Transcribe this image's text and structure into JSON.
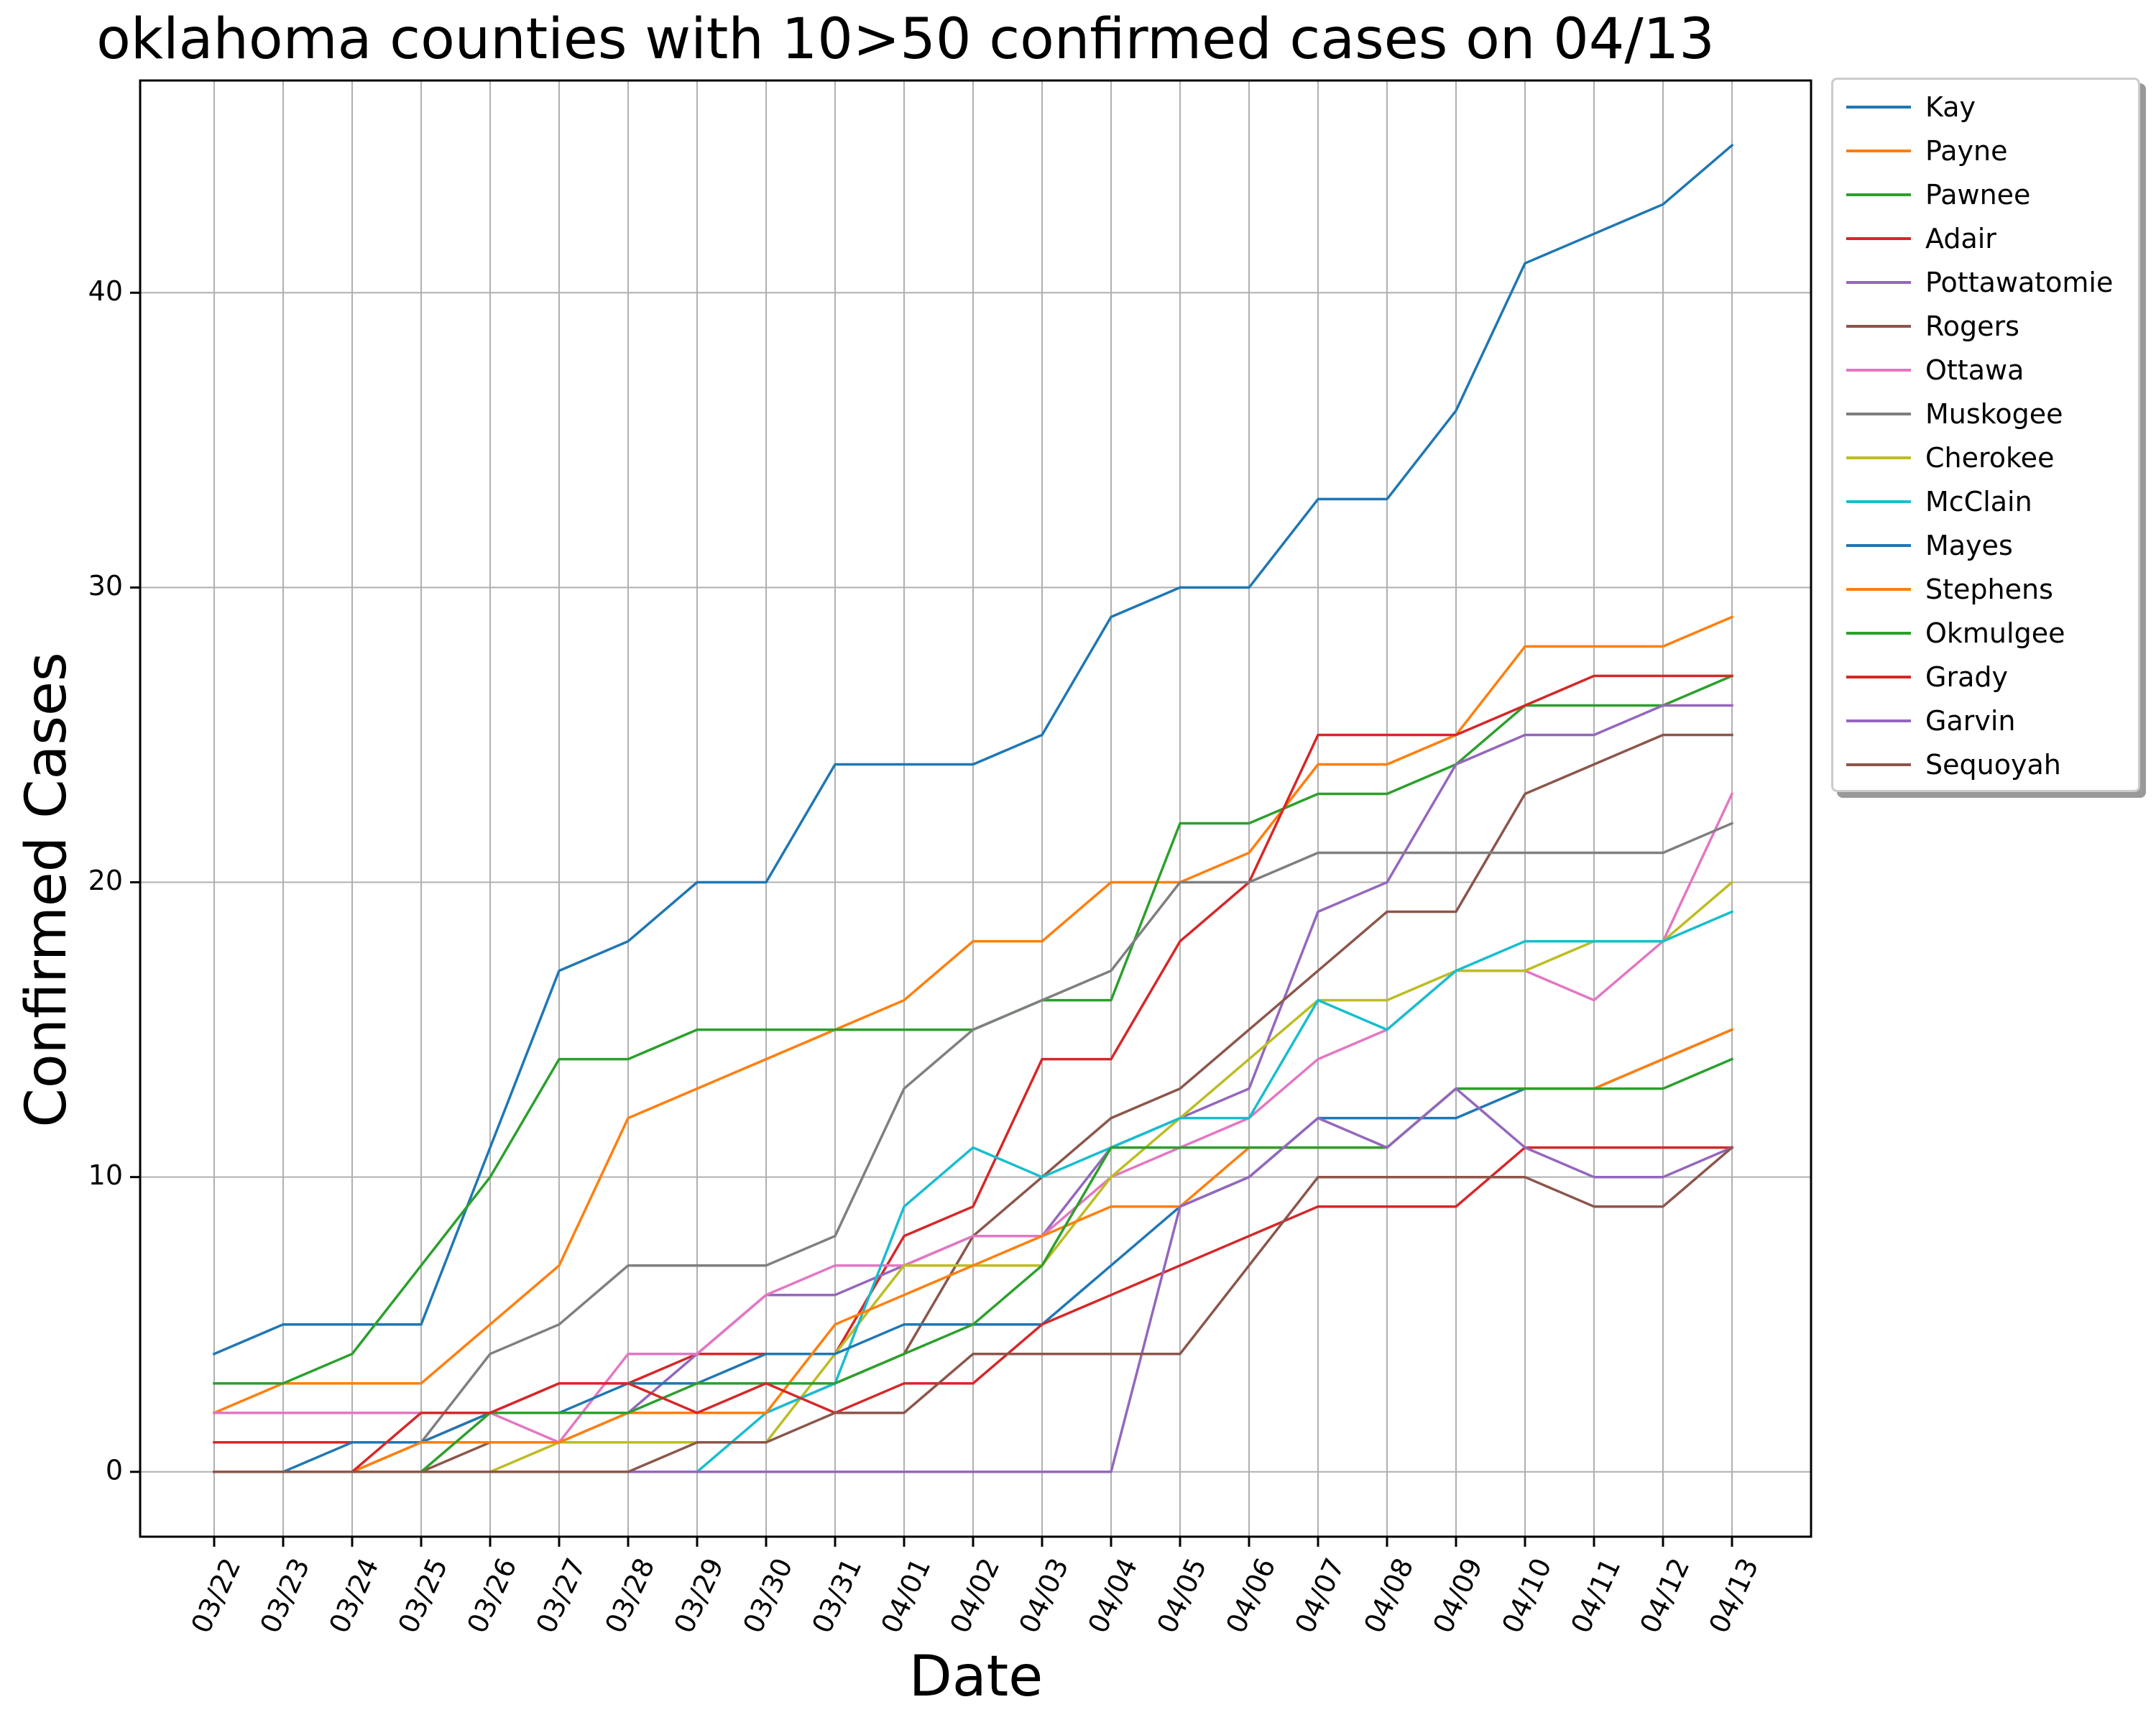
{
  "chart_data": {
    "type": "line",
    "title": "oklahoma counties with 10>50 confirmed cases on 04/13",
    "xlabel": "Date",
    "ylabel": "Confirmed Cases",
    "categories": [
      "03/22",
      "03/23",
      "03/24",
      "03/25",
      "03/26",
      "03/27",
      "03/28",
      "03/29",
      "03/30",
      "03/31",
      "04/01",
      "04/02",
      "04/03",
      "04/04",
      "04/05",
      "04/06",
      "04/07",
      "04/08",
      "04/09",
      "04/10",
      "04/11",
      "04/12",
      "04/13"
    ],
    "ylim": [
      -2.2,
      47.2
    ],
    "yticks": [
      0,
      10,
      20,
      30,
      40
    ],
    "grid": true,
    "legend_position": "outside top-right",
    "series": [
      {
        "name": "Kay",
        "color": "#1f77b4",
        "values": [
          4,
          5,
          5,
          5,
          11,
          17,
          18,
          20,
          20,
          24,
          24,
          24,
          25,
          29,
          30,
          30,
          33,
          33,
          36,
          41,
          42,
          43,
          45
        ]
      },
      {
        "name": "Payne",
        "color": "#ff7f0e",
        "values": [
          2,
          3,
          3,
          3,
          5,
          7,
          12,
          13,
          14,
          15,
          16,
          18,
          18,
          20,
          20,
          21,
          24,
          24,
          25,
          28,
          28,
          28,
          29
        ]
      },
      {
        "name": "Pawnee",
        "color": "#2ca02c",
        "values": [
          3,
          3,
          4,
          7,
          10,
          14,
          14,
          15,
          15,
          15,
          15,
          15,
          16,
          16,
          22,
          22,
          23,
          23,
          24,
          26,
          26,
          26,
          27
        ]
      },
      {
        "name": "Adair",
        "color": "#d62728",
        "values": [
          1,
          1,
          1,
          1,
          2,
          3,
          3,
          4,
          4,
          4,
          8,
          9,
          14,
          14,
          18,
          20,
          25,
          25,
          25,
          26,
          27,
          27,
          27
        ]
      },
      {
        "name": "Pottawatomie",
        "color": "#9467bd",
        "values": [
          2,
          2,
          2,
          2,
          2,
          2,
          2,
          4,
          6,
          6,
          7,
          8,
          8,
          11,
          12,
          13,
          19,
          20,
          24,
          25,
          25,
          26,
          26
        ]
      },
      {
        "name": "Rogers",
        "color": "#8c564b",
        "values": [
          0,
          0,
          0,
          0,
          1,
          1,
          2,
          2,
          2,
          3,
          4,
          8,
          10,
          12,
          13,
          15,
          17,
          19,
          19,
          23,
          24,
          25,
          25
        ]
      },
      {
        "name": "Ottawa",
        "color": "#e377c2",
        "values": [
          2,
          2,
          2,
          2,
          2,
          1,
          4,
          4,
          6,
          7,
          7,
          8,
          8,
          10,
          11,
          12,
          14,
          15,
          17,
          17,
          16,
          18,
          23
        ]
      },
      {
        "name": "Muskogee",
        "color": "#7f7f7f",
        "values": [
          0,
          0,
          0,
          1,
          4,
          5,
          7,
          7,
          7,
          8,
          13,
          15,
          16,
          17,
          20,
          20,
          21,
          21,
          21,
          21,
          21,
          21,
          22
        ]
      },
      {
        "name": "Cherokee",
        "color": "#bcbd22",
        "values": [
          0,
          0,
          0,
          0,
          0,
          1,
          1,
          1,
          1,
          4,
          7,
          7,
          7,
          10,
          12,
          14,
          16,
          16,
          17,
          17,
          18,
          18,
          20
        ]
      },
      {
        "name": "McClain",
        "color": "#17becf",
        "values": [
          0,
          0,
          0,
          0,
          0,
          0,
          0,
          0,
          2,
          3,
          9,
          11,
          10,
          11,
          12,
          12,
          16,
          15,
          17,
          18,
          18,
          18,
          19
        ]
      },
      {
        "name": "Mayes",
        "color": "#1f77b4",
        "values": [
          0,
          0,
          1,
          1,
          2,
          2,
          3,
          3,
          4,
          4,
          5,
          5,
          5,
          7,
          9,
          10,
          12,
          12,
          12,
          13,
          13,
          14,
          15
        ]
      },
      {
        "name": "Stephens",
        "color": "#ff7f0e",
        "values": [
          0,
          0,
          0,
          1,
          1,
          1,
          2,
          2,
          2,
          5,
          6,
          7,
          8,
          9,
          9,
          11,
          11,
          11,
          13,
          13,
          13,
          14,
          15
        ]
      },
      {
        "name": "Okmulgee",
        "color": "#2ca02c",
        "values": [
          0,
          0,
          0,
          0,
          2,
          2,
          2,
          3,
          3,
          3,
          4,
          5,
          7,
          11,
          11,
          11,
          11,
          11,
          13,
          13,
          13,
          13,
          14
        ]
      },
      {
        "name": "Grady",
        "color": "#d62728",
        "values": [
          0,
          0,
          0,
          2,
          2,
          3,
          3,
          2,
          3,
          2,
          3,
          3,
          5,
          6,
          7,
          8,
          9,
          9,
          9,
          11,
          11,
          11,
          11
        ]
      },
      {
        "name": "Garvin",
        "color": "#9467bd",
        "values": [
          0,
          0,
          0,
          0,
          0,
          0,
          0,
          0,
          0,
          0,
          0,
          0,
          0,
          0,
          9,
          10,
          12,
          11,
          13,
          11,
          10,
          10,
          11
        ]
      },
      {
        "name": "Sequoyah",
        "color": "#8c564b",
        "values": [
          0,
          0,
          0,
          0,
          0,
          0,
          0,
          1,
          1,
          2,
          2,
          4,
          4,
          4,
          4,
          7,
          10,
          10,
          10,
          10,
          9,
          9,
          11
        ]
      }
    ]
  }
}
